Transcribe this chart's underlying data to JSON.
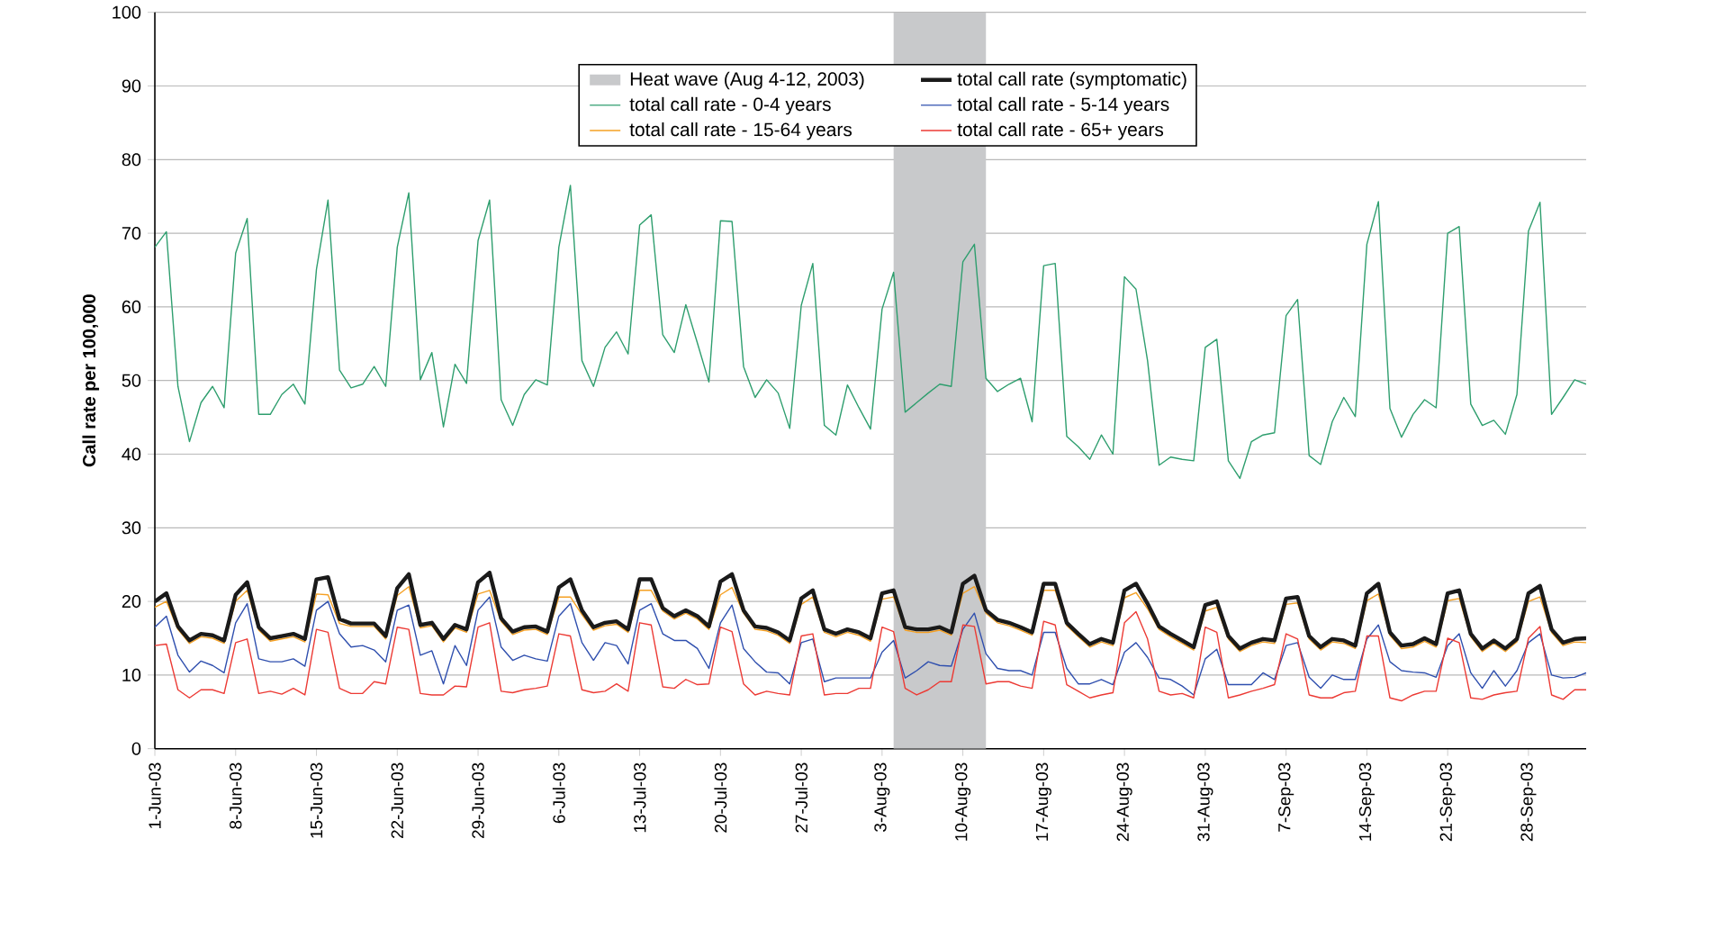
{
  "chart_data": {
    "type": "line",
    "ylabel": "**Call rate per 100,000**",
    "x": [
      "2003-06-01",
      "2003-06-02",
      "2003-06-03",
      "2003-06-04",
      "2003-06-05",
      "2003-06-06",
      "2003-06-07",
      "2003-06-08",
      "2003-06-09",
      "2003-06-10",
      "2003-06-11",
      "2003-06-12",
      "2003-06-13",
      "2003-06-14",
      "2003-06-15",
      "2003-06-16",
      "2003-06-17",
      "2003-06-18",
      "2003-06-19",
      "2003-06-20",
      "2003-06-21",
      "2003-06-22",
      "2003-06-23",
      "2003-06-24",
      "2003-06-25",
      "2003-06-26",
      "2003-06-27",
      "2003-06-28",
      "2003-06-29",
      "2003-06-30",
      "2003-07-01",
      "2003-07-02",
      "2003-07-03",
      "2003-07-04",
      "2003-07-05",
      "2003-07-06",
      "2003-07-07",
      "2003-07-08",
      "2003-07-09",
      "2003-07-10",
      "2003-07-11",
      "2003-07-12",
      "2003-07-13",
      "2003-07-14",
      "2003-07-15",
      "2003-07-16",
      "2003-07-17",
      "2003-07-18",
      "2003-07-19",
      "2003-07-20",
      "2003-07-21",
      "2003-07-22",
      "2003-07-23",
      "2003-07-24",
      "2003-07-25",
      "2003-07-26",
      "2003-07-27",
      "2003-07-28",
      "2003-07-29",
      "2003-07-30",
      "2003-07-31",
      "2003-08-01",
      "2003-08-02",
      "2003-08-03",
      "2003-08-04",
      "2003-08-05",
      "2003-08-06",
      "2003-08-07",
      "2003-08-08",
      "2003-08-09",
      "2003-08-10",
      "2003-08-11",
      "2003-08-12",
      "2003-08-13",
      "2003-08-14",
      "2003-08-15",
      "2003-08-16",
      "2003-08-17",
      "2003-08-18",
      "2003-08-19",
      "2003-08-20",
      "2003-08-21",
      "2003-08-22",
      "2003-08-23",
      "2003-08-24",
      "2003-08-25",
      "2003-08-26",
      "2003-08-27",
      "2003-08-28",
      "2003-08-29",
      "2003-08-30",
      "2003-08-31",
      "2003-09-01",
      "2003-09-02",
      "2003-09-03",
      "2003-09-04",
      "2003-09-05",
      "2003-09-06",
      "2003-09-07",
      "2003-09-08",
      "2003-09-09",
      "2003-09-10",
      "2003-09-11",
      "2003-09-12",
      "2003-09-13",
      "2003-09-14",
      "2003-09-15",
      "2003-09-16",
      "2003-09-17",
      "2003-09-18",
      "2003-09-19",
      "2003-09-20",
      "2003-09-21",
      "2003-09-22",
      "2003-09-23",
      "2003-09-24",
      "2003-09-25",
      "2003-09-26",
      "2003-09-27",
      "2003-09-28",
      "2003-09-29",
      "2003-09-30",
      "2003-10-01",
      "2003-10-02",
      "2003-10-03"
    ],
    "series": [
      {
        "name": "total call rate (symptomatic)",
        "color": "#1a1a1a",
        "values": [
          20,
          21.1,
          16.6,
          14.7,
          15.6,
          15.4,
          14.7,
          20.9,
          22.6,
          16.5,
          15.0,
          15.3,
          15.6,
          14.9,
          23.0,
          23.3,
          17.6,
          17.0,
          17.0,
          17.0,
          15.3,
          21.8,
          23.7,
          16.8,
          17.1,
          14.9,
          16.8,
          16.2,
          22.6,
          23.9,
          17.7,
          15.9,
          16.5,
          16.6,
          15.9,
          21.9,
          23.0,
          18.8,
          16.5,
          17.1,
          17.3,
          16.2,
          23.0,
          23.0,
          19.1,
          18.0,
          18.8,
          18.0,
          16.6,
          22.7,
          23.7,
          18.8,
          16.6,
          16.4,
          15.8,
          14.7,
          20.4,
          21.5,
          16.2,
          15.6,
          16.2,
          15.8,
          15.0,
          21.1,
          21.5,
          16.5,
          16.2,
          16.2,
          16.5,
          15.8,
          22.4,
          23.5,
          18.8,
          17.5,
          17.1,
          16.5,
          15.8,
          22.4,
          22.4,
          17.1,
          15.6,
          14.2,
          14.9,
          14.4,
          21.5,
          22.4,
          19.7,
          16.6,
          15.6,
          14.7,
          13.8,
          19.5,
          20.0,
          15.3,
          13.6,
          14.4,
          14.9,
          14.7,
          20.4,
          20.6,
          15.3,
          13.8,
          14.9,
          14.7,
          14.0,
          21.1,
          22.4,
          15.8,
          14.0,
          14.2,
          15.0,
          14.2,
          21.1,
          21.5,
          15.6,
          13.6,
          14.7,
          13.6,
          14.9,
          21.1,
          22.1,
          16.2,
          14.4,
          14.9,
          15.0
        ]
      },
      {
        "name": "total call rate - 0-4 years",
        "color": "#2e9e6e",
        "values": [
          68.1,
          70.2,
          49.2,
          41.7,
          47.0,
          49.2,
          46.3,
          67.3,
          72.0,
          45.4,
          45.4,
          48.1,
          49.5,
          46.8,
          65.1,
          74.5,
          51.4,
          49.0,
          49.5,
          51.9,
          49.2,
          68.1,
          75.5,
          50.1,
          53.8,
          43.7,
          52.2,
          49.6,
          69.0,
          74.5,
          47.4,
          43.9,
          48.1,
          50.1,
          49.4,
          68.1,
          76.5,
          52.7,
          49.2,
          54.5,
          56.6,
          53.6,
          71.1,
          72.5,
          56.2,
          53.8,
          60.3,
          55.1,
          49.8,
          71.7,
          71.6,
          51.9,
          47.7,
          50.1,
          48.3,
          43.5,
          60.2,
          65.9,
          43.9,
          42.6,
          49.4,
          46.3,
          43.4,
          59.7,
          64.7,
          45.7,
          47.0,
          48.3,
          49.5,
          49.2,
          66.1,
          68.5,
          50.3,
          48.5,
          49.5,
          50.3,
          44.4,
          65.6,
          65.9,
          42.4,
          41.0,
          39.3,
          42.6,
          40.0,
          64.1,
          62.4,
          52.7,
          38.5,
          39.6,
          39.3,
          39.1,
          54.5,
          55.6,
          39.1,
          36.7,
          41.7,
          42.6,
          42.9,
          58.8,
          61.0,
          39.8,
          38.6,
          44.4,
          47.7,
          45.1,
          68.5,
          74.3,
          46.2,
          42.3,
          45.4,
          47.4,
          46.3,
          70.0,
          70.9,
          46.8,
          43.9,
          44.6,
          42.7,
          48.1,
          70.3,
          74.2,
          45.4,
          47.7,
          50.1,
          49.5
        ]
      },
      {
        "name": "total call rate - 5-14 years",
        "color": "#2f4fae",
        "values": [
          16.5,
          18.0,
          12.7,
          10.4,
          11.9,
          11.3,
          10.3,
          17.1,
          19.7,
          12.2,
          11.8,
          11.8,
          12.2,
          11.2,
          18.8,
          20.0,
          15.6,
          13.8,
          14.0,
          13.4,
          11.8,
          18.8,
          19.5,
          12.7,
          13.3,
          8.8,
          14.0,
          11.3,
          18.8,
          20.6,
          13.8,
          12.0,
          12.7,
          12.2,
          11.9,
          18.0,
          19.7,
          14.4,
          12.0,
          14.4,
          14.0,
          11.5,
          18.8,
          19.7,
          15.6,
          14.7,
          14.7,
          13.6,
          10.9,
          17.1,
          19.5,
          13.6,
          11.8,
          10.4,
          10.3,
          8.8,
          14.4,
          14.9,
          9.1,
          9.6,
          9.6,
          9.6,
          9.6,
          13.1,
          14.7,
          9.6,
          10.6,
          11.8,
          11.3,
          11.2,
          16.2,
          18.4,
          12.9,
          10.9,
          10.6,
          10.6,
          10.0,
          15.8,
          15.8,
          10.9,
          8.8,
          8.8,
          9.4,
          8.7,
          13.1,
          14.4,
          12.4,
          9.6,
          9.4,
          8.5,
          7.3,
          12.2,
          13.5,
          8.7,
          8.7,
          8.7,
          10.3,
          9.4,
          14.0,
          14.4,
          9.7,
          8.2,
          10.0,
          9.4,
          9.4,
          14.9,
          16.8,
          11.8,
          10.6,
          10.4,
          10.3,
          9.7,
          14.0,
          15.6,
          10.3,
          8.2,
          10.6,
          8.5,
          10.6,
          14.4,
          15.6,
          10.0,
          9.6,
          9.7,
          10.3
        ]
      },
      {
        "name": "total call rate - 15-64 years",
        "color": "#f5a023",
        "values": [
          19.2,
          20.0,
          16.2,
          14.3,
          15.2,
          15.0,
          14.3,
          20.0,
          21.5,
          16.1,
          14.6,
          14.9,
          15.2,
          14.5,
          21.0,
          20.9,
          17.0,
          16.6,
          16.6,
          16.6,
          14.9,
          20.8,
          22.0,
          16.4,
          16.7,
          14.5,
          16.4,
          15.8,
          21.0,
          21.5,
          17.3,
          15.5,
          16.1,
          16.2,
          15.5,
          20.6,
          20.6,
          18.2,
          16.1,
          16.7,
          16.9,
          15.8,
          21.5,
          21.5,
          18.7,
          17.6,
          18.4,
          17.6,
          16.2,
          20.9,
          21.9,
          18.4,
          16.2,
          16.0,
          15.4,
          14.3,
          19.6,
          20.6,
          15.8,
          15.2,
          15.8,
          15.4,
          14.6,
          20.3,
          20.6,
          16.1,
          15.8,
          15.8,
          16.1,
          15.4,
          21.1,
          22.0,
          18.4,
          17.1,
          16.7,
          16.1,
          15.4,
          21.5,
          21.5,
          16.7,
          15.2,
          13.8,
          14.5,
          14.0,
          20.5,
          21.2,
          19.0,
          16.2,
          15.2,
          14.3,
          13.4,
          18.7,
          19.2,
          14.9,
          13.2,
          14.0,
          14.5,
          14.3,
          19.6,
          19.8,
          14.9,
          13.4,
          14.5,
          14.3,
          13.6,
          20.1,
          21.0,
          15.4,
          13.6,
          13.8,
          14.6,
          13.8,
          20.1,
          20.4,
          15.2,
          13.2,
          14.3,
          13.2,
          14.5,
          20.0,
          20.6,
          15.8,
          14.0,
          14.5,
          14.4
        ]
      },
      {
        "name": "total call rate - 65+ years",
        "color": "#ec3a34",
        "values": [
          14.0,
          14.2,
          8.0,
          6.9,
          8.0,
          8.0,
          7.5,
          14.4,
          14.9,
          7.5,
          7.8,
          7.4,
          8.2,
          7.3,
          16.2,
          15.8,
          8.2,
          7.5,
          7.5,
          9.1,
          8.8,
          16.5,
          16.2,
          7.5,
          7.3,
          7.3,
          8.5,
          8.4,
          16.5,
          17.1,
          7.8,
          7.6,
          8.0,
          8.2,
          8.5,
          15.6,
          15.3,
          8.0,
          7.6,
          7.8,
          8.8,
          7.8,
          17.1,
          16.8,
          8.4,
          8.2,
          9.4,
          8.7,
          8.8,
          16.5,
          15.9,
          8.8,
          7.3,
          7.8,
          7.5,
          7.3,
          15.3,
          15.6,
          7.3,
          7.5,
          7.5,
          8.2,
          8.2,
          16.5,
          15.9,
          8.2,
          7.3,
          8.0,
          9.1,
          9.1,
          16.8,
          16.6,
          8.8,
          9.1,
          9.1,
          8.5,
          8.2,
          17.3,
          16.8,
          8.7,
          7.8,
          6.9,
          7.3,
          7.6,
          17.1,
          18.6,
          14.9,
          7.8,
          7.3,
          7.5,
          6.9,
          16.5,
          15.8,
          6.9,
          7.3,
          7.8,
          8.2,
          8.7,
          15.6,
          14.9,
          7.3,
          6.9,
          6.9,
          7.6,
          7.8,
          15.3,
          15.3,
          6.9,
          6.5,
          7.3,
          7.8,
          7.8,
          15.0,
          14.4,
          6.9,
          6.7,
          7.3,
          7.6,
          7.8,
          15.0,
          16.6,
          7.3,
          6.7,
          8.0,
          8.0
        ]
      }
    ],
    "bands": [
      {
        "axis": "x",
        "from": "2003-08-04",
        "to": "2003-08-12",
        "label": "Heat wave (Aug 4-12, 2003)",
        "color": "#c8c9cb"
      }
    ],
    "xlim": [
      "2003-06-01",
      "2003-10-03"
    ],
    "xticks": [
      {
        "value": "2003-06-01",
        "label": "1-Jun-03"
      },
      {
        "value": "2003-06-08",
        "label": "8-Jun-03"
      },
      {
        "value": "2003-06-15",
        "label": "15-Jun-03"
      },
      {
        "value": "2003-06-22",
        "label": "22-Jun-03"
      },
      {
        "value": "2003-06-29",
        "label": "29-Jun-03"
      },
      {
        "value": "2003-07-06",
        "label": "6-Jul-03"
      },
      {
        "value": "2003-07-13",
        "label": "13-Jul-03"
      },
      {
        "value": "2003-07-20",
        "label": "20-Jul-03"
      },
      {
        "value": "2003-07-27",
        "label": "27-Jul-03"
      },
      {
        "value": "2003-08-03",
        "label": "3-Aug-03"
      },
      {
        "value": "2003-08-10",
        "label": "10-Aug-03"
      },
      {
        "value": "2003-08-17",
        "label": "17-Aug-03"
      },
      {
        "value": "2003-08-24",
        "label": "24-Aug-03"
      },
      {
        "value": "2003-08-31",
        "label": "31-Aug-03"
      },
      {
        "value": "2003-09-07",
        "label": "7-Sep-03"
      },
      {
        "value": "2003-09-14",
        "label": "14-Sep-03"
      },
      {
        "value": "2003-09-21",
        "label": "21-Sep-03"
      },
      {
        "value": "2003-09-28",
        "label": "28-Sep-03"
      }
    ],
    "ylim": [
      0,
      100
    ],
    "yticks": [
      0,
      10,
      20,
      30,
      40,
      50,
      60,
      70,
      80,
      90,
      100
    ],
    "grid": "y",
    "legend": "top"
  }
}
